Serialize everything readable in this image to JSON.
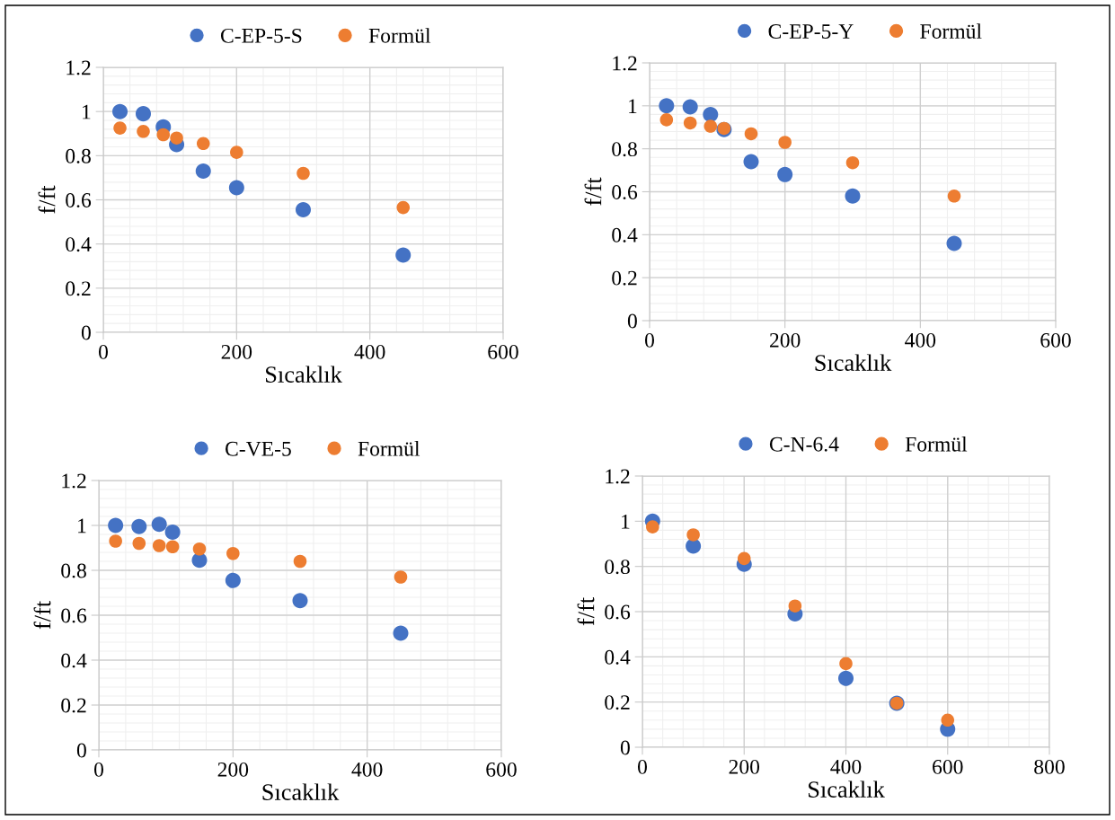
{
  "chart_data": [
    {
      "type": "scatter",
      "xlabel": "Sıcaklık",
      "ylabel": "f/ft",
      "x": [
        25,
        60,
        90,
        110,
        150,
        200,
        300,
        450
      ],
      "xlim": [
        0,
        600
      ],
      "xticks": [
        0,
        200,
        400,
        600
      ],
      "ylim": [
        0,
        1.2
      ],
      "yticks": [
        0,
        0.2,
        0.4,
        0.6,
        0.8,
        1,
        1.2
      ],
      "grid": true,
      "legend": "top",
      "marker": "circle",
      "series": [
        {
          "name": "C-EP-5-S",
          "color": "#4472c4",
          "values": [
            1.0,
            0.99,
            0.93,
            0.85,
            0.73,
            0.655,
            0.555,
            0.35
          ]
        },
        {
          "name": "Formül",
          "color": "#ed7d31",
          "values": [
            0.925,
            0.91,
            0.895,
            0.88,
            0.855,
            0.815,
            0.72,
            0.565
          ]
        }
      ]
    },
    {
      "type": "scatter",
      "xlabel": "Sıcaklık",
      "ylabel": "f/ft",
      "x": [
        25,
        60,
        90,
        110,
        150,
        200,
        300,
        450
      ],
      "xlim": [
        0,
        600
      ],
      "xticks": [
        0,
        200,
        400,
        600
      ],
      "ylim": [
        0,
        1.2
      ],
      "yticks": [
        0,
        0.2,
        0.4,
        0.6,
        0.8,
        1,
        1.2
      ],
      "grid": true,
      "legend": "top",
      "marker": "circle",
      "series": [
        {
          "name": "C-EP-5-Y",
          "color": "#4472c4",
          "values": [
            1.0,
            0.995,
            0.96,
            0.89,
            0.74,
            0.68,
            0.58,
            0.36
          ]
        },
        {
          "name": "Formül",
          "color": "#ed7d31",
          "values": [
            0.935,
            0.92,
            0.905,
            0.895,
            0.87,
            0.83,
            0.735,
            0.58
          ]
        }
      ]
    },
    {
      "type": "scatter",
      "xlabel": "Sıcaklık",
      "ylabel": "f/ft",
      "x": [
        25,
        60,
        90,
        110,
        150,
        200,
        300,
        450
      ],
      "xlim": [
        0,
        600
      ],
      "xticks": [
        0,
        200,
        400,
        600
      ],
      "ylim": [
        0,
        1.2
      ],
      "yticks": [
        0,
        0.2,
        0.4,
        0.6,
        0.8,
        1,
        1.2
      ],
      "grid": true,
      "legend": "top",
      "marker": "circle",
      "series": [
        {
          "name": "C-VE-5",
          "color": "#4472c4",
          "values": [
            1.0,
            0.995,
            1.005,
            0.97,
            0.845,
            0.755,
            0.665,
            0.52
          ]
        },
        {
          "name": "Formül",
          "color": "#ed7d31",
          "values": [
            0.93,
            0.92,
            0.91,
            0.905,
            0.895,
            0.875,
            0.84,
            0.77
          ]
        }
      ]
    },
    {
      "type": "scatter",
      "xlabel": "Sıcaklık",
      "ylabel": "f/ft",
      "x": [
        20,
        100,
        200,
        300,
        400,
        500,
        600
      ],
      "xlim": [
        0,
        800
      ],
      "xticks": [
        0,
        200,
        400,
        600,
        800
      ],
      "ylim": [
        0,
        1.2
      ],
      "yticks": [
        0,
        0.2,
        0.4,
        0.6,
        0.8,
        1,
        1.2
      ],
      "grid": true,
      "legend": "top",
      "marker": "circle",
      "series": [
        {
          "name": "C-N-6.4",
          "color": "#4472c4",
          "values": [
            1.0,
            0.89,
            0.81,
            0.59,
            0.305,
            0.195,
            0.08
          ]
        },
        {
          "name": "Formül",
          "color": "#ed7d31",
          "values": [
            0.975,
            0.94,
            0.835,
            0.625,
            0.37,
            0.195,
            0.12
          ]
        }
      ]
    }
  ]
}
